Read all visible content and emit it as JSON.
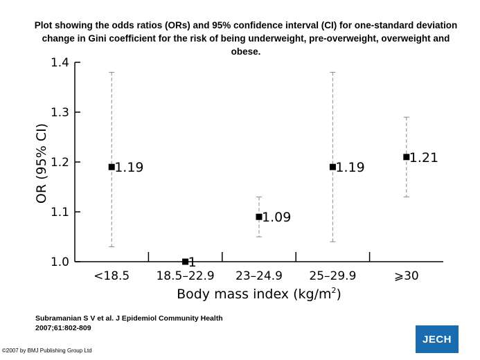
{
  "header": {
    "title": "Plot showing the odds ratios (ORs) and 95% confidence interval (CI) for one-standard deviation change in Gini coefficient for the risk of being underweight, pre-overweight, overweight and obese."
  },
  "footer": {
    "citation_line1": "Subramanian S V et al. J Epidemiol Community Health",
    "citation_line2": "2007;61:802-809",
    "copyright": "©2007 by BMJ Publishing Group Ltd",
    "logo_text": "JECH"
  },
  "colors": {
    "logo": "#1a6cb0",
    "marker": "#000000",
    "whisker": "#888888"
  },
  "chart_data": {
    "type": "scatter",
    "xlabel": "Body mass index (kg/m",
    "xlabel_sup": "2",
    "xlabel_close": ")",
    "ylabel": "OR (95% CI)",
    "ylim": [
      1.0,
      1.4
    ],
    "yticks": [
      "1.0",
      "1.1",
      "1.2",
      "1.3",
      "1.4"
    ],
    "categories": [
      "<18.5",
      "18.5–22.9",
      "23–24.9",
      "25–29.9",
      "⩾30"
    ],
    "values": [
      1.19,
      1.0,
      1.09,
      1.19,
      1.21
    ],
    "labels": [
      "1.19",
      "1",
      "1.09",
      "1.19",
      "1.21"
    ],
    "ci_lower": [
      1.03,
      null,
      1.05,
      1.04,
      1.13
    ],
    "ci_upper": [
      1.38,
      null,
      1.13,
      1.38,
      1.29
    ]
  }
}
